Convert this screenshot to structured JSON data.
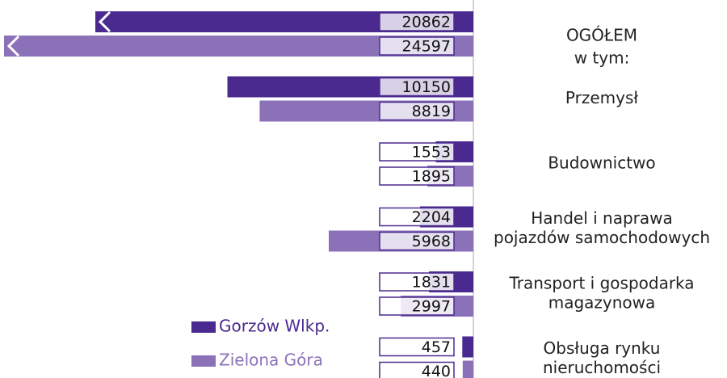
{
  "chart_data": {
    "type": "bar",
    "orientation": "horizontal",
    "categories": [
      [
        "OGÓŁEM",
        "w tym:"
      ],
      [
        "Przemysł"
      ],
      [
        "Budownictwo"
      ],
      [
        "Handel i naprawa",
        "pojazdów samochodowych"
      ],
      [
        "Transport i gospodarka",
        "magazynowa"
      ],
      [
        "Obsługa rynku",
        "nieruchomości"
      ]
    ],
    "series": [
      {
        "name": "Gorzów Wlkp.",
        "color": "#4b2a8f",
        "values": [
          20862,
          10150,
          1553,
          2204,
          1831,
          457
        ]
      },
      {
        "name": "Zielona Góra",
        "color": "#8b72b8",
        "values": [
          24597,
          8819,
          1895,
          5968,
          2997,
          440
        ]
      }
    ]
  }
}
